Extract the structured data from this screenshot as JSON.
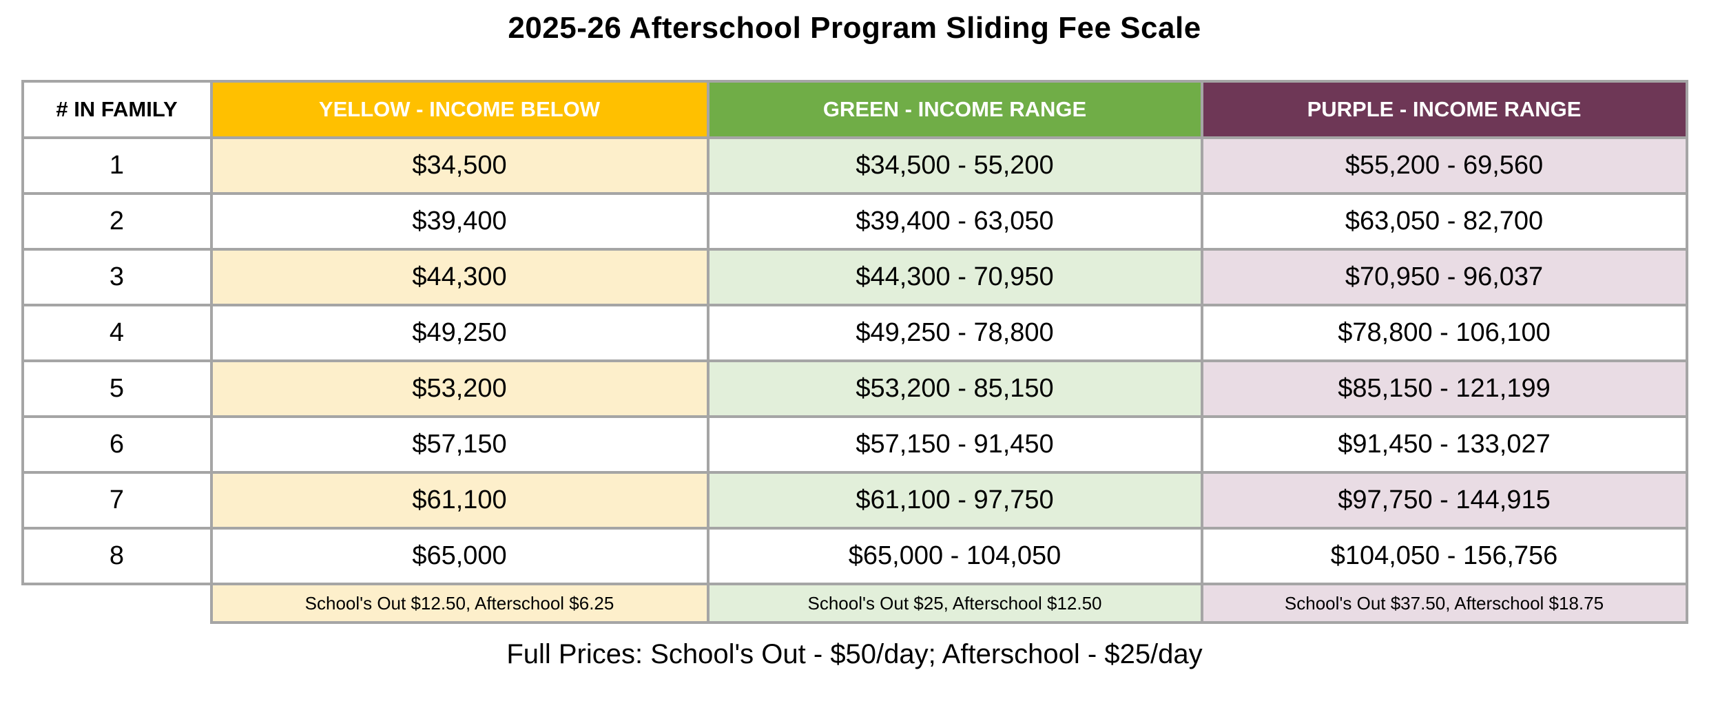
{
  "page": {
    "title": "2025-26 Afterschool Program Sliding Fee Scale",
    "caption": "Full Prices: School's Out - $50/day; Afterschool - $25/day"
  },
  "table": {
    "columns": {
      "family": "# IN FAMILY",
      "yellow": "YELLOW - INCOME BELOW",
      "green": "GREEN - INCOME RANGE",
      "purple": "PURPLE - INCOME RANGE"
    },
    "rows": [
      {
        "family": "1",
        "yellow": "$34,500",
        "green": "$34,500 - 55,200",
        "purple": "$55,200 - 69,560"
      },
      {
        "family": "2",
        "yellow": "$39,400",
        "green": "$39,400 - 63,050",
        "purple": "$63,050 - 82,700"
      },
      {
        "family": "3",
        "yellow": "$44,300",
        "green": "$44,300 - 70,950",
        "purple": "$70,950 - 96,037"
      },
      {
        "family": "4",
        "yellow": "$49,250",
        "green": "$49,250 - 78,800",
        "purple": "$78,800 - 106,100"
      },
      {
        "family": "5",
        "yellow": "$53,200",
        "green": "$53,200 - 85,150",
        "purple": "$85,150 - 121,199"
      },
      {
        "family": "6",
        "yellow": "$57,150",
        "green": "$57,150 - 91,450",
        "purple": "$91,450 - 133,027"
      },
      {
        "family": "7",
        "yellow": "$61,100",
        "green": "$61,100 - 97,750",
        "purple": "$97,750 - 144,915"
      },
      {
        "family": "8",
        "yellow": "$65,000",
        "green": "$65,000 - 104,050",
        "purple": "$104,050 - 156,756"
      }
    ],
    "footer": {
      "yellow": "School's Out $12.50, Afterschool $6.25",
      "green": "School's Out $25, Afterschool $12.50",
      "purple": "School's Out $37.50, Afterschool $18.75"
    }
  },
  "colors": {
    "yellow_header": "#FFC000",
    "yellow_tint": "#FDEFCB",
    "green_header": "#70AD47",
    "green_tint": "#E2EFDA",
    "purple_header": "#6E3756",
    "purple_tint": "#E9DCE4",
    "border_gray": "#A5A5A5"
  }
}
